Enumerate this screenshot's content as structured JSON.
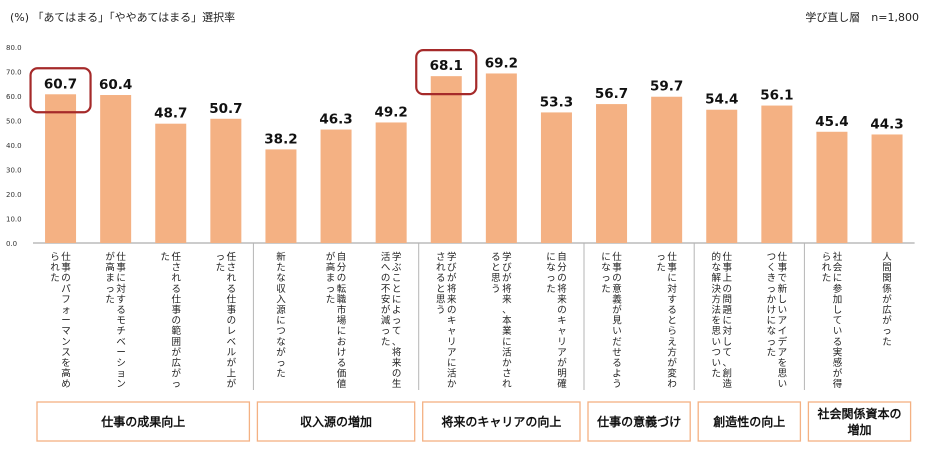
{
  "header": {
    "unit_note": "(%) 「あてはまる」「ややあてはまる」選択率",
    "sample_note": "学び直し層　n=1,800"
  },
  "colors": {
    "bar": "#f4b183",
    "highlight": "#a52a2a",
    "group_border": "#f4b183",
    "axis": "#999999"
  },
  "chart_data": {
    "type": "bar",
    "title": "",
    "xlabel": "",
    "ylabel": "",
    "ylim": [
      0,
      80
    ],
    "yticks": [
      "0.0",
      "10.0",
      "20.0",
      "30.0",
      "40.0",
      "50.0",
      "60.0",
      "70.0",
      "80.0"
    ],
    "grid": false,
    "categories": [
      "仕事のパフォーマンスを高められた",
      "仕事に対するモチベーションが高まった",
      "任される仕事の範囲が広がった",
      "任される仕事のレベルが上がった",
      "新たな収入源につながった",
      "自分の転職市場における価値が高まった",
      "学ぶことによって、将来の生活への不安が減った",
      "学びが将来のキャリアに活かされると思う",
      "学びが将来、本業に活かされると思う",
      "自分の将来のキャリアが明確になった",
      "仕事の意義が見いだせるようになった",
      "仕事に対するとらえ方が変わった",
      "仕事上の問題に対して、創造的な解決方法を思いついた",
      "仕事で新しいアイデアを思いつくきっかけになった",
      "社会に参加している実感が得られた",
      "人間関係が広がった"
    ],
    "values": [
      60.7,
      60.4,
      48.7,
      50.7,
      38.2,
      46.3,
      49.2,
      68.1,
      69.2,
      53.3,
      56.7,
      59.7,
      54.4,
      56.1,
      45.4,
      44.3
    ],
    "value_labels": [
      "60.7",
      "60.4",
      "48.7",
      "50.7",
      "38.2",
      "46.3",
      "49.2",
      "68.1",
      "69.2",
      "53.3",
      "56.7",
      "59.7",
      "54.4",
      "56.1",
      "45.4",
      "44.3"
    ],
    "highlighted": [
      0,
      7
    ],
    "groups": [
      {
        "label": "仕事の成果向上",
        "start": 0,
        "end": 3
      },
      {
        "label": "収入源の増加",
        "start": 4,
        "end": 6
      },
      {
        "label": "将来のキャリアの向上",
        "start": 7,
        "end": 9
      },
      {
        "label": "仕事の意義づけ",
        "start": 10,
        "end": 11
      },
      {
        "label": "創造性の向上",
        "start": 12,
        "end": 13
      },
      {
        "label": "社会関係資本の増加",
        "start": 14,
        "end": 15
      }
    ]
  }
}
